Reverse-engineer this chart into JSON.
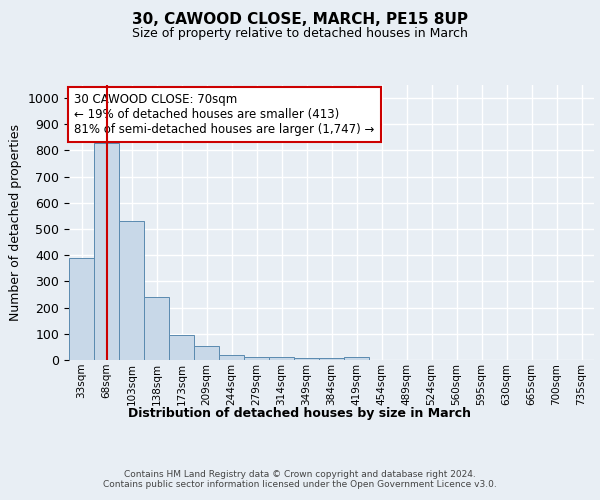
{
  "title_line1": "30, CAWOOD CLOSE, MARCH, PE15 8UP",
  "title_line2": "Size of property relative to detached houses in March",
  "xlabel": "Distribution of detached houses by size in March",
  "ylabel": "Number of detached properties",
  "bin_labels": [
    "33sqm",
    "68sqm",
    "103sqm",
    "138sqm",
    "173sqm",
    "209sqm",
    "244sqm",
    "279sqm",
    "314sqm",
    "349sqm",
    "384sqm",
    "419sqm",
    "454sqm",
    "489sqm",
    "524sqm",
    "560sqm",
    "595sqm",
    "630sqm",
    "665sqm",
    "700sqm",
    "735sqm"
  ],
  "bar_heights": [
    390,
    830,
    530,
    240,
    95,
    52,
    18,
    13,
    13,
    8,
    8,
    10,
    0,
    0,
    0,
    0,
    0,
    0,
    0,
    0,
    0
  ],
  "bar_color": "#c8d8e8",
  "bar_edge_color": "#5a8ab0",
  "vline_x": 1,
  "vline_color": "#cc0000",
  "annotation_text": "30 CAWOOD CLOSE: 70sqm\n← 19% of detached houses are smaller (413)\n81% of semi-detached houses are larger (1,747) →",
  "annotation_box_color": "#ffffff",
  "annotation_box_edge": "#cc0000",
  "ylim": [
    0,
    1050
  ],
  "yticks": [
    0,
    100,
    200,
    300,
    400,
    500,
    600,
    700,
    800,
    900,
    1000
  ],
  "footer_text": "Contains HM Land Registry data © Crown copyright and database right 2024.\nContains public sector information licensed under the Open Government Licence v3.0.",
  "background_color": "#e8eef4",
  "plot_background": "#e8eef4",
  "grid_color": "#ffffff"
}
